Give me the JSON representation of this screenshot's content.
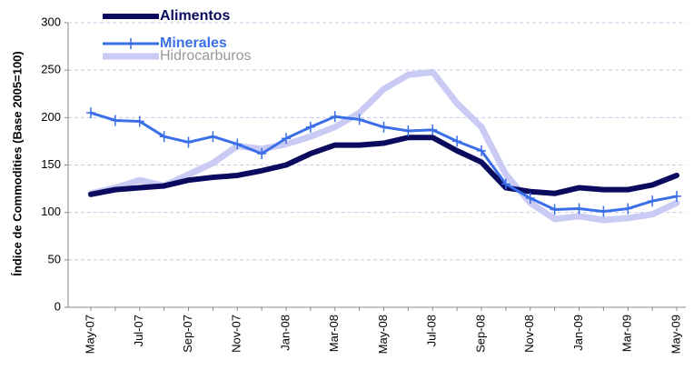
{
  "chart_data": {
    "type": "line",
    "y_label": "Índice de Commodities (Base 2005=100)",
    "categories": [
      "May-07",
      null,
      "Jul-07",
      null,
      "Sep-07",
      null,
      "Nov-07",
      null,
      "Jan-08",
      null,
      "Mar-08",
      null,
      "May-08",
      null,
      "Jul-08",
      null,
      "Sep-08",
      null,
      "Nov-08",
      null,
      "Jan-09",
      null,
      "Mar-09",
      null,
      "May-09"
    ],
    "series": [
      {
        "name": "Alimentos",
        "color": "#0a0a5e",
        "values": [
          119,
          124,
          126,
          128,
          134,
          137,
          139,
          144,
          150,
          162,
          171,
          171,
          173,
          179,
          179,
          165,
          153,
          126,
          122,
          120,
          126,
          124,
          124,
          129,
          139
        ]
      },
      {
        "name": "Minerales",
        "color": "#3a6fe8",
        "values": [
          205,
          197,
          196,
          180,
          174,
          180,
          172,
          162,
          178,
          190,
          201,
          198,
          190,
          186,
          187,
          175,
          165,
          130,
          115,
          103,
          104,
          101,
          104,
          112,
          117
        ]
      },
      {
        "name": "Hidrocarburos",
        "color": "#c9cbf5",
        "values": [
          120,
          126,
          134,
          128,
          140,
          152,
          170,
          167,
          172,
          180,
          190,
          205,
          230,
          245,
          248,
          215,
          190,
          140,
          110,
          93,
          96,
          92,
          94,
          98,
          110
        ]
      }
    ],
    "ylim": [
      0,
      300
    ],
    "yticks": [
      0,
      50,
      100,
      150,
      200,
      250,
      300
    ],
    "grid": true
  }
}
